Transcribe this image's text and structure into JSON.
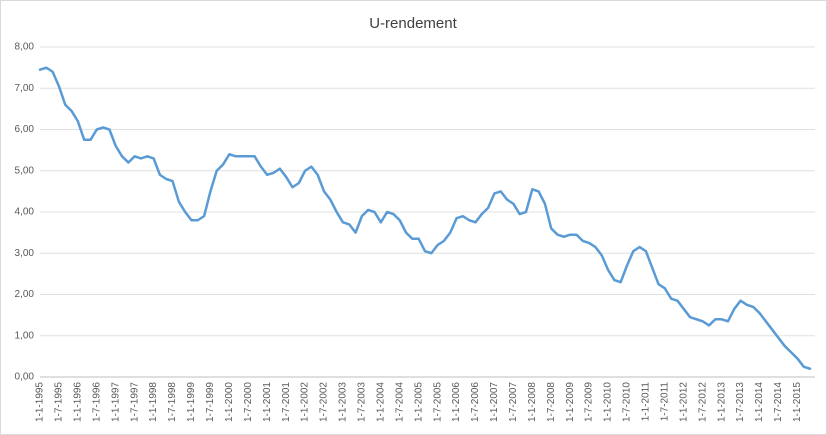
{
  "chart_data": {
    "type": "line",
    "title": "U-rendement",
    "categories": [
      "1-1-1995",
      null,
      null,
      "1-7-1995",
      null,
      null,
      "1-1-1996",
      null,
      null,
      "1-7-1996",
      null,
      null,
      "1-1-1997",
      null,
      null,
      "1-7-1997",
      null,
      null,
      "1-1-1998",
      null,
      null,
      "1-7-1998",
      null,
      null,
      "1-1-1999",
      null,
      null,
      "1-7-1999",
      null,
      null,
      "1-1-2000",
      null,
      null,
      "1-7-2000",
      null,
      null,
      "1-1-2001",
      null,
      null,
      "1-7-2001",
      null,
      null,
      "1-1-2002",
      null,
      null,
      "1-7-2002",
      null,
      null,
      "1-1-2003",
      null,
      null,
      "1-7-2003",
      null,
      null,
      "1-1-2004",
      null,
      null,
      "1-7-2004",
      null,
      null,
      "1-1-2005",
      null,
      null,
      "1-7-2005",
      null,
      null,
      "1-1-2006",
      null,
      null,
      "1-7-2006",
      null,
      null,
      "1-1-2007",
      null,
      null,
      "1-7-2007",
      null,
      null,
      "1-1-2008",
      null,
      null,
      "1-7-2008",
      null,
      null,
      "1-1-2009",
      null,
      null,
      "1-7-2009",
      null,
      null,
      "1-1-2010",
      null,
      null,
      "1-7-2010",
      null,
      null,
      "1-1-2011",
      null,
      null,
      "1-7-2011",
      null,
      null,
      "1-1-2012",
      null,
      null,
      "1-7-2012",
      null,
      null,
      "1-1-2013",
      null,
      null,
      "1-7-2013",
      null,
      null,
      "1-1-2014",
      null,
      null,
      "1-7-2014",
      null,
      null,
      "1-1-2015",
      null,
      null
    ],
    "values": [
      7.45,
      7.5,
      7.4,
      7.05,
      6.6,
      6.45,
      6.2,
      5.75,
      5.75,
      6.0,
      6.05,
      6.0,
      5.6,
      5.35,
      5.2,
      5.35,
      5.3,
      5.35,
      5.3,
      4.9,
      4.8,
      4.75,
      4.25,
      4.0,
      3.8,
      3.8,
      3.9,
      4.5,
      5.0,
      5.15,
      5.4,
      5.35,
      5.35,
      5.35,
      5.35,
      5.1,
      4.9,
      4.95,
      5.05,
      4.85,
      4.6,
      4.7,
      5.0,
      5.1,
      4.9,
      4.5,
      4.3,
      4.0,
      3.75,
      3.7,
      3.5,
      3.9,
      4.05,
      4.0,
      3.75,
      4.0,
      3.95,
      3.8,
      3.5,
      3.35,
      3.35,
      3.05,
      3.0,
      3.2,
      3.3,
      3.5,
      3.85,
      3.9,
      3.8,
      3.75,
      3.95,
      4.1,
      4.45,
      4.5,
      4.3,
      4.2,
      3.95,
      4.0,
      4.55,
      4.5,
      4.2,
      3.6,
      3.45,
      3.4,
      3.45,
      3.45,
      3.3,
      3.25,
      3.15,
      2.95,
      2.6,
      2.35,
      2.3,
      2.7,
      3.05,
      3.15,
      3.05,
      2.65,
      2.25,
      2.15,
      1.9,
      1.85,
      1.65,
      1.45,
      1.4,
      1.35,
      1.25,
      1.4,
      1.4,
      1.35,
      1.65,
      1.85,
      1.75,
      1.7,
      1.55,
      1.35,
      1.15,
      0.95,
      0.75,
      0.6,
      0.45,
      0.25,
      0.2
    ],
    "color": "#5b9bd5",
    "ylim": [
      0,
      8
    ],
    "yticks": [
      {
        "value": 0,
        "label": "0,00"
      },
      {
        "value": 1,
        "label": "1,00"
      },
      {
        "value": 2,
        "label": "2,00"
      },
      {
        "value": 3,
        "label": "3,00"
      },
      {
        "value": 4,
        "label": "4,00"
      },
      {
        "value": 5,
        "label": "5,00"
      },
      {
        "value": 6,
        "label": "6,00"
      },
      {
        "value": 7,
        "label": "7,00"
      },
      {
        "value": 8,
        "label": "8,00"
      }
    ],
    "grid": true
  }
}
